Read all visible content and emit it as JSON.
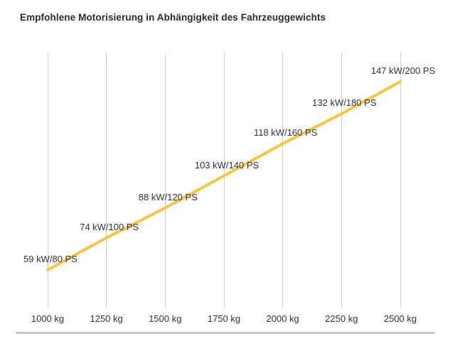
{
  "chart_data": {
    "type": "line",
    "title": "Empfohlene Motorisierung in Abhängigkeit des Fahrzeuggewichts",
    "categories": [
      "1000 kg",
      "1250 kg",
      "1500 kg",
      "1750 kg",
      "2000 kg",
      "2250 kg",
      "2500 kg"
    ],
    "x_values_kg": [
      1000,
      1250,
      1500,
      1750,
      2000,
      2250,
      2500
    ],
    "series": [
      {
        "name": "Empfohlene Motorisierung",
        "values_kw": [
          59,
          74,
          88,
          103,
          118,
          132,
          147
        ],
        "values_ps": [
          80,
          100,
          120,
          140,
          160,
          180,
          200
        ]
      }
    ],
    "point_labels": [
      "59 kW/80 PS",
      "74 kW/100 PS",
      "88 kW/120 PS",
      "103 kW/140 PS",
      "118 kW/160 PS",
      "132 kW/180 PS",
      "147 kW/200 PS"
    ],
    "xlabel": "",
    "ylabel": "",
    "ylim_kw": [
      59,
      147
    ],
    "grid": "vertical-gridlines-only",
    "legend": "none",
    "colors": {
      "line": "#F7C543",
      "gridline": "#cbcbcb",
      "axis_line": "#c9c9c9",
      "title_text": "#2b2b2b",
      "label_text": "#333333",
      "background": "#ffffff"
    }
  }
}
